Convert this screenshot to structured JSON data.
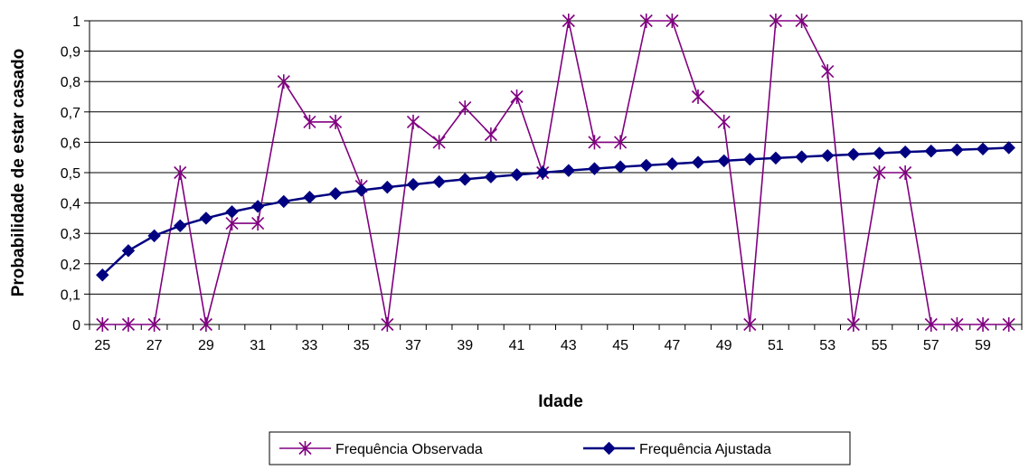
{
  "chart_data": {
    "type": "line",
    "xlabel": "Idade",
    "ylabel": "Probabilidade de estar casado",
    "x": [
      25,
      26,
      27,
      28,
      29,
      30,
      31,
      32,
      33,
      34,
      35,
      36,
      37,
      38,
      39,
      40,
      41,
      42,
      43,
      44,
      45,
      46,
      47,
      48,
      49,
      50,
      51,
      52,
      53,
      54,
      55,
      56,
      57,
      58,
      59,
      60
    ],
    "x_tick_labels": [
      "25",
      "27",
      "29",
      "31",
      "33",
      "35",
      "37",
      "39",
      "41",
      "43",
      "45",
      "47",
      "49",
      "51",
      "53",
      "55",
      "57",
      "59"
    ],
    "y_tick_labels": [
      "0",
      "0,1",
      "0,2",
      "0,3",
      "0,4",
      "0,5",
      "0,6",
      "0,7",
      "0,8",
      "0,9",
      "1"
    ],
    "ylim": [
      0,
      1
    ],
    "grid": true,
    "legend_position": "bottom",
    "series": [
      {
        "name": "Frequência Observada",
        "color": "#800080",
        "marker": "asterisk",
        "values": [
          0,
          0,
          0,
          0.5,
          0,
          0.333,
          0.333,
          0.8,
          0.667,
          0.667,
          0.455,
          0,
          0.667,
          0.6,
          0.714,
          0.625,
          0.75,
          0.5,
          1,
          0.6,
          0.6,
          1,
          1,
          0.75,
          0.667,
          0,
          1,
          1,
          0.833,
          0,
          0.5,
          0.5,
          0,
          0,
          0,
          0
        ]
      },
      {
        "name": "Frequência Ajustada",
        "color": "#000080",
        "marker": "diamond",
        "values": [
          0.163,
          0.243,
          0.292,
          0.325,
          0.35,
          0.371,
          0.389,
          0.405,
          0.419,
          0.431,
          0.442,
          0.452,
          0.461,
          0.47,
          0.478,
          0.486,
          0.493,
          0.5,
          0.507,
          0.513,
          0.519,
          0.524,
          0.529,
          0.534,
          0.539,
          0.544,
          0.548,
          0.552,
          0.556,
          0.56,
          0.564,
          0.568,
          0.571,
          0.575,
          0.578,
          0.582
        ]
      }
    ]
  }
}
